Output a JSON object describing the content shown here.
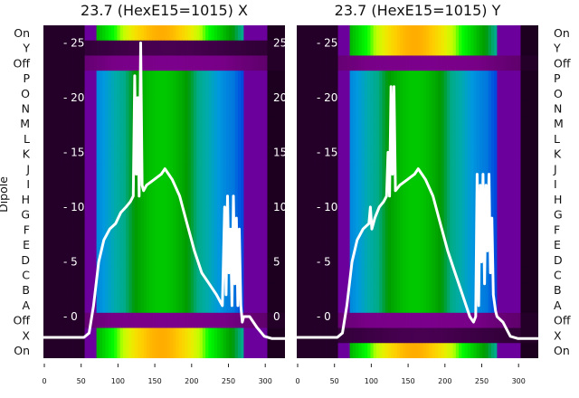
{
  "chart_data": [
    {
      "type": "heatmap",
      "title": "23.7 (HexE15=1015) X",
      "ylabel": "Dipole",
      "categories": [
        "On",
        "Y",
        "Off",
        "P",
        "O",
        "N",
        "M",
        "L",
        "K",
        "J",
        "I",
        "H",
        "G",
        "F",
        "E",
        "D",
        "C",
        "B",
        "A",
        "Off",
        "X",
        "On"
      ],
      "row_peaks": [
        0.78,
        0.03,
        0.06,
        0.52,
        0.52,
        0.52,
        0.52,
        0.52,
        0.52,
        0.52,
        0.52,
        0.52,
        0.52,
        0.52,
        0.52,
        0.52,
        0.52,
        0.52,
        0.52,
        0.06,
        0.78,
        0.78
      ],
      "colormap": "nipy_spectral",
      "xlim": [
        0,
        328
      ],
      "xticks": [
        0,
        50,
        100,
        150,
        200,
        250,
        300
      ],
      "overlay_ylim": [
        -3.8,
        26.6
      ],
      "overlay_yticks": [
        0,
        5,
        10,
        15,
        20,
        25
      ],
      "overlay_line": {
        "color": "#ffffff",
        "x": [
          0,
          40,
          55,
          62,
          68,
          75,
          82,
          90,
          98,
          105,
          112,
          118,
          122,
          124,
          126,
          128,
          130,
          132,
          134,
          136,
          140,
          150,
          160,
          165,
          170,
          175,
          185,
          195,
          205,
          215,
          225,
          235,
          243,
          246,
          248,
          250,
          252,
          254,
          256,
          258,
          260,
          262,
          264,
          266,
          268,
          270,
          272,
          280,
          290,
          300,
          310,
          328
        ],
        "y": [
          -1.9,
          -1.9,
          -1.9,
          -1.5,
          1,
          5,
          7,
          8,
          8.5,
          9.5,
          10,
          10.5,
          11,
          22,
          13,
          20,
          11,
          25,
          12,
          11.5,
          12,
          12.5,
          13,
          13.5,
          13,
          12.5,
          11,
          8.5,
          6,
          4,
          3,
          2,
          1,
          10,
          2,
          11,
          4,
          8,
          1,
          11,
          3,
          9,
          1,
          8,
          1,
          -0.5,
          0,
          0,
          -1,
          -1.8,
          -2,
          -2
        ]
      }
    },
    {
      "type": "heatmap",
      "title": "23.7 (HexE15=1015) Y",
      "ylabel": "",
      "categories": [
        "On",
        "Y",
        "Off",
        "P",
        "O",
        "N",
        "M",
        "L",
        "K",
        "J",
        "I",
        "H",
        "G",
        "F",
        "E",
        "D",
        "C",
        "B",
        "A",
        "Off",
        "X",
        "On"
      ],
      "row_peaks": [
        0.78,
        0.78,
        0.06,
        0.52,
        0.52,
        0.52,
        0.52,
        0.52,
        0.52,
        0.52,
        0.52,
        0.52,
        0.52,
        0.52,
        0.52,
        0.52,
        0.52,
        0.52,
        0.52,
        0.06,
        0.03,
        0.78
      ],
      "colormap": "nipy_spectral",
      "xlim": [
        0,
        328
      ],
      "xticks": [
        0,
        50,
        100,
        150,
        200,
        250,
        300
      ],
      "overlay_ylim": [
        -3.8,
        26.6
      ],
      "overlay_yticks": [
        0,
        5,
        10,
        15,
        20,
        25
      ],
      "overlay_line": {
        "color": "#ffffff",
        "x": [
          0,
          40,
          55,
          62,
          68,
          75,
          82,
          90,
          98,
          100,
          102,
          106,
          112,
          118,
          122,
          124,
          126,
          128,
          130,
          132,
          134,
          140,
          150,
          160,
          165,
          170,
          175,
          185,
          195,
          205,
          215,
          225,
          235,
          240,
          243,
          245,
          247,
          249,
          251,
          253,
          255,
          257,
          259,
          261,
          263,
          265,
          267,
          270,
          272,
          280,
          290,
          300,
          310,
          328
        ],
        "y": [
          -1.9,
          -1.9,
          -1.9,
          -1.5,
          1,
          5,
          7,
          8,
          8.5,
          10,
          8,
          9,
          10,
          10.5,
          11,
          15,
          11,
          21,
          13,
          21,
          11.5,
          12,
          12.5,
          13,
          13.5,
          13,
          12.5,
          11,
          8.5,
          6,
          4,
          2,
          0,
          -0.5,
          0,
          13,
          1,
          12,
          5,
          13,
          3,
          12,
          6,
          13,
          4,
          9,
          2,
          0.5,
          0,
          -0.5,
          -1.8,
          -2,
          -2,
          -2
        ]
      }
    }
  ]
}
